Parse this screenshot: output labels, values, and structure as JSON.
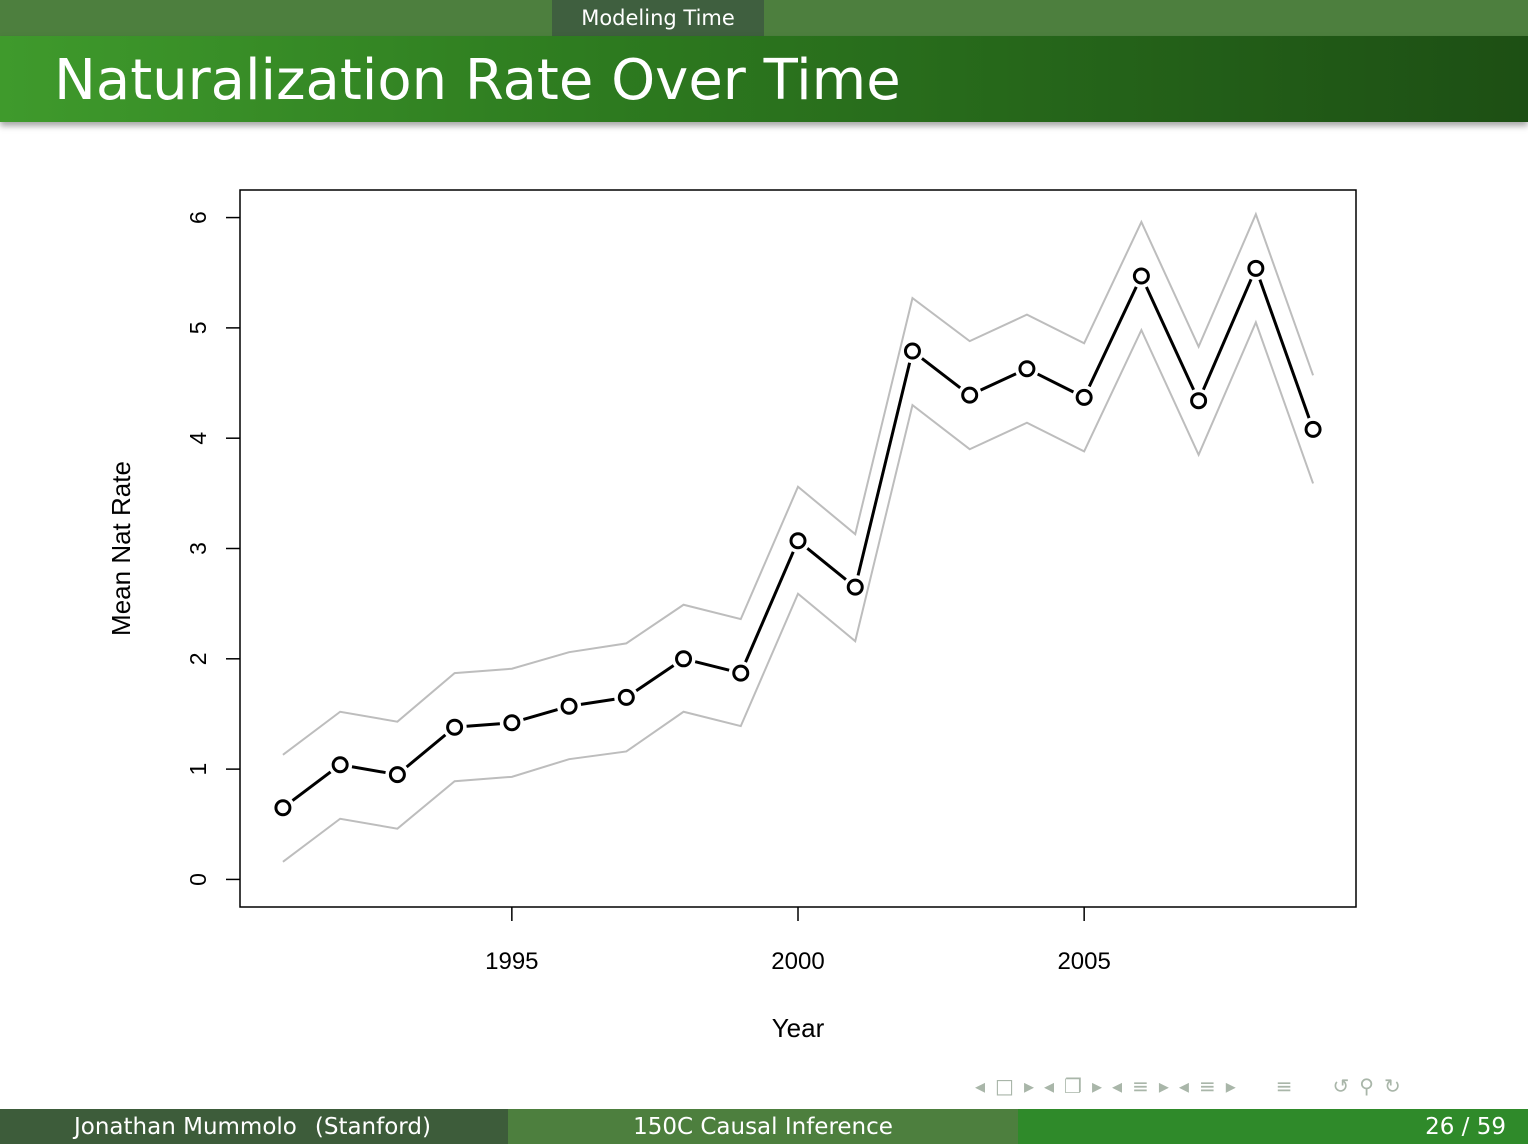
{
  "header": {
    "section": "Modeling Time",
    "title": "Naturalization Rate Over Time"
  },
  "footer": {
    "author": "Jonathan Mummolo",
    "affiliation": "(Stanford)",
    "course": "150C Causal Inference",
    "page": "26 / 59"
  },
  "colors": {
    "title_bar": "#2d7a1f",
    "footer_left": "#3d5c3a",
    "footer_mid": "#4d7f3e",
    "footer_right": "#2f8a2a",
    "series_mean": "#000000",
    "series_band": "#bdbdbd"
  },
  "nav_icons": [
    "triangle-left-icon",
    "frame-icon",
    "triangle-right-icon",
    "triangle-left-icon",
    "subsection-icon",
    "triangle-right-icon",
    "triangle-left-icon",
    "align-icon",
    "triangle-right-icon",
    "triangle-left-icon",
    "align-icon",
    "triangle-right-icon",
    "align-icon",
    "undo-icon",
    "search-icon",
    "redo-icon"
  ],
  "chart_data": {
    "type": "line",
    "xlabel": "Year",
    "ylabel": "Mean Nat Rate",
    "xlim": [
      1990.25,
      2009.75
    ],
    "ylim": [
      -0.25,
      6.25
    ],
    "xticks": [
      1995,
      2000,
      2005
    ],
    "yticks": [
      0,
      1,
      2,
      3,
      4,
      5,
      6
    ],
    "grid": false,
    "x": [
      1991,
      1992,
      1993,
      1994,
      1995,
      1996,
      1997,
      1998,
      1999,
      2000,
      2001,
      2002,
      2003,
      2004,
      2005,
      2006,
      2007,
      2008,
      2009
    ],
    "series": [
      {
        "values": [
          0.65,
          1.04,
          0.95,
          1.38,
          1.42,
          1.57,
          1.65,
          2.0,
          1.87,
          3.07,
          2.65,
          4.79,
          4.39,
          4.63,
          4.37,
          5.47,
          4.34,
          5.54,
          4.08
        ]
      },
      {
        "values": [
          1.13,
          1.52,
          1.43,
          1.87,
          1.91,
          2.06,
          2.14,
          2.49,
          2.36,
          3.56,
          3.13,
          5.27,
          4.88,
          5.12,
          4.86,
          5.96,
          4.83,
          6.03,
          4.57
        ]
      },
      {
        "values": [
          0.16,
          0.55,
          0.46,
          0.89,
          0.93,
          1.09,
          1.16,
          1.52,
          1.39,
          2.59,
          2.16,
          4.3,
          3.9,
          4.14,
          3.88,
          4.98,
          3.85,
          5.05,
          3.59
        ]
      }
    ]
  }
}
